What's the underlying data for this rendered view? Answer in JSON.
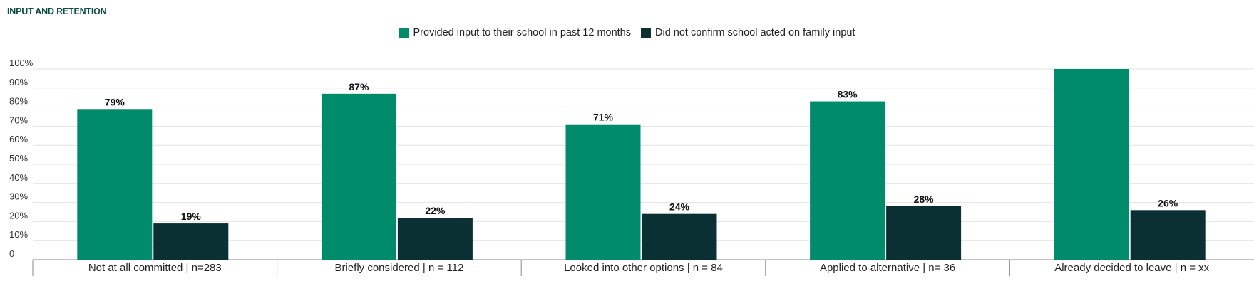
{
  "title": "INPUT AND RETENTION",
  "colors": {
    "series1": "#008b6b",
    "series2": "#0a3034",
    "grid": "#e2e2e2",
    "axis": "#888888"
  },
  "chart_data": {
    "type": "bar",
    "title": "INPUT AND RETENTION",
    "xlabel": "",
    "ylabel": "",
    "ylim": [
      0,
      100
    ],
    "yticks": [
      "0",
      "10%",
      "20%",
      "30%",
      "40%",
      "50%",
      "60%",
      "70%",
      "80%",
      "90%",
      "100%"
    ],
    "grid": true,
    "legend_position": "top-center",
    "categories": [
      "Not at all committed | n=283",
      "Briefly considered | n = 112",
      "Looked into other options | n = 84",
      "Applied to alternative | n= 36",
      "Already decided to leave | n = xx"
    ],
    "series": [
      {
        "name": "Provided input to their school in past 12 months",
        "values": [
          79,
          87,
          71,
          83,
          100
        ],
        "labels": [
          "79%",
          "87%",
          "71%",
          "83%",
          ""
        ]
      },
      {
        "name": "Did not confirm school acted on family input",
        "values": [
          19,
          22,
          24,
          28,
          26
        ],
        "labels": [
          "19%",
          "22%",
          "24%",
          "28%",
          "26%"
        ]
      }
    ]
  }
}
